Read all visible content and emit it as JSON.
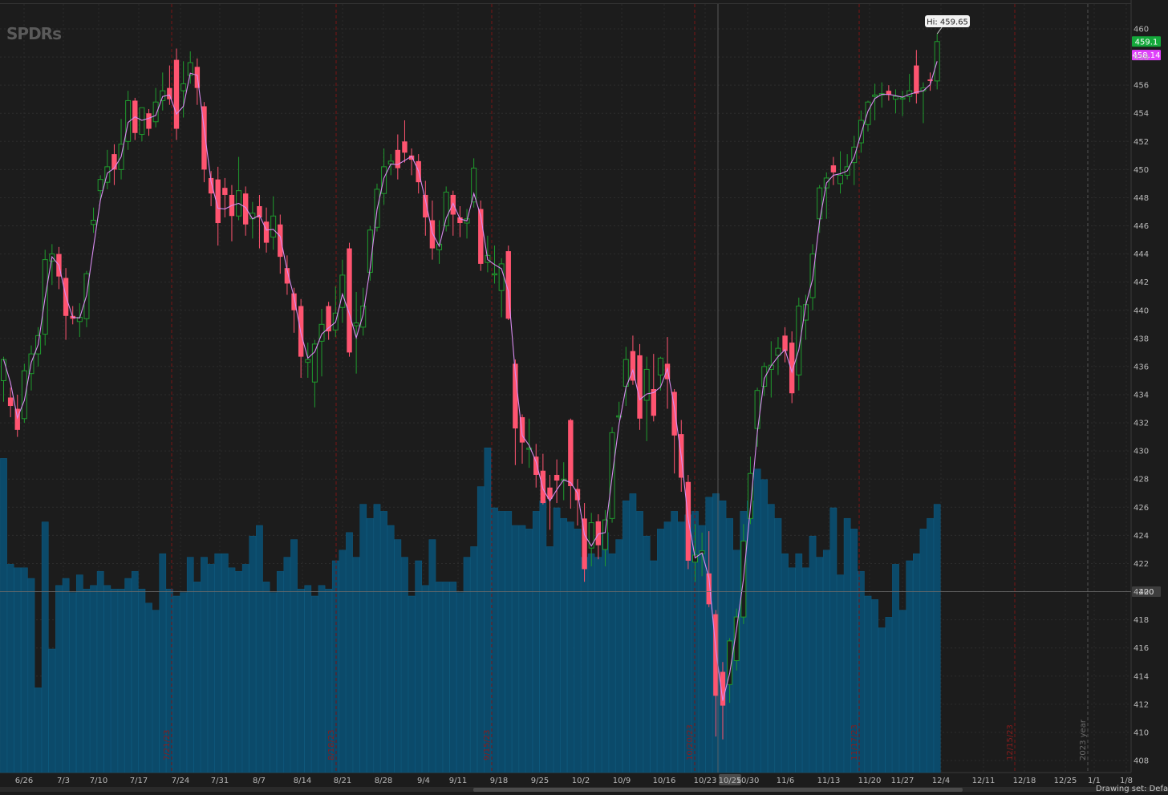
{
  "logo_text": "SPDRs",
  "hi_label": "Hi: 459.65",
  "price_tags": {
    "green": {
      "text": "459.1",
      "value": 459.1,
      "color": "#14a83b"
    },
    "magenta": {
      "text": "458.14",
      "value": 458.14,
      "color": "#e040fb"
    },
    "gray": {
      "text": "420",
      "value": 420,
      "color": "#3d3d3d"
    }
  },
  "drawing_set_label": "Drawing set: Default",
  "chart_data": {
    "type": "candlestick",
    "ylim": [
      407,
      462
    ],
    "y_ticks": [
      408,
      410,
      412,
      414,
      416,
      418,
      420,
      422,
      424,
      426,
      428,
      430,
      432,
      434,
      436,
      438,
      440,
      442,
      444,
      446,
      448,
      450,
      452,
      454,
      456,
      458,
      460
    ],
    "x_tick_labels": [
      "6/26",
      "7/3",
      "7/10",
      "7/17",
      "7/24",
      "7/31",
      "8/7",
      "8/14",
      "8/21",
      "8/28",
      "9/4",
      "9/11",
      "9/18",
      "9/25",
      "10/2",
      "10/9",
      "10/16",
      "10/23",
      "10/25",
      "10/30",
      "11/6",
      "11/13",
      "11/20",
      "11/27",
      "12/4",
      "12/11",
      "12/18",
      "12/25",
      "1/1",
      "1/8"
    ],
    "vertical_markers": [
      {
        "label": "7/21/23",
        "color": "#8a1c1c"
      },
      {
        "label": "8/18/23",
        "color": "#8a1c1c"
      },
      {
        "label": "9/15/23",
        "color": "#8a1c1c"
      },
      {
        "label": "10/20/23",
        "color": "#8a1c1c"
      },
      {
        "label": "11/17/23",
        "color": "#8a1c1c"
      },
      {
        "label": "12/15/23",
        "color": "#8a1c1c"
      },
      {
        "label": "2023 year",
        "color": "#6a6a6a"
      }
    ],
    "candles": [
      {
        "o": 435,
        "h": 436.7,
        "l": 433.5,
        "c": 436.5
      },
      {
        "o": 433.8,
        "h": 434.5,
        "l": 432.4,
        "c": 433.2
      },
      {
        "o": 433,
        "h": 434,
        "l": 431,
        "c": 431.5
      },
      {
        "o": 432.3,
        "h": 436.2,
        "l": 432,
        "c": 435.7
      },
      {
        "o": 435.5,
        "h": 437.5,
        "l": 434.3,
        "c": 436.9
      },
      {
        "o": 436.9,
        "h": 438.8,
        "l": 436,
        "c": 438.2
      },
      {
        "o": 438.3,
        "h": 444.3,
        "l": 437.5,
        "c": 443.6
      },
      {
        "o": 443.5,
        "h": 444.7,
        "l": 441.8,
        "c": 444
      },
      {
        "o": 444,
        "h": 444.5,
        "l": 441.5,
        "c": 442.4
      },
      {
        "o": 442.3,
        "h": 443,
        "l": 437.9,
        "c": 439.6
      },
      {
        "o": 439.6,
        "h": 440.3,
        "l": 439,
        "c": 439.4
      },
      {
        "o": 439.2,
        "h": 440.5,
        "l": 438.1,
        "c": 439.5
      },
      {
        "o": 439.4,
        "h": 442.8,
        "l": 438.8,
        "c": 442.6
      },
      {
        "o": 446.1,
        "h": 447.3,
        "l": 445.5,
        "c": 446.4
      },
      {
        "o": 448.5,
        "h": 449.6,
        "l": 447.8,
        "c": 449.3
      },
      {
        "o": 449.1,
        "h": 451.4,
        "l": 448.6,
        "c": 450.2
      },
      {
        "o": 451.1,
        "h": 451.8,
        "l": 448.9,
        "c": 450
      },
      {
        "o": 450,
        "h": 453.6,
        "l": 449.3,
        "c": 451.8
      },
      {
        "o": 452,
        "h": 455.6,
        "l": 451.4,
        "c": 454.9
      },
      {
        "o": 454.9,
        "h": 455.1,
        "l": 452.1,
        "c": 452.6
      },
      {
        "o": 452.5,
        "h": 454.4,
        "l": 452,
        "c": 454.4
      },
      {
        "o": 454,
        "h": 454.3,
        "l": 452.4,
        "c": 452.9
      },
      {
        "o": 453.4,
        "h": 455.8,
        "l": 453,
        "c": 454.8
      },
      {
        "o": 454.9,
        "h": 456.9,
        "l": 454.2,
        "c": 455.6
      },
      {
        "o": 455.8,
        "h": 457.4,
        "l": 454.6,
        "c": 455
      },
      {
        "o": 457.8,
        "h": 458.6,
        "l": 452.1,
        "c": 452.9
      },
      {
        "o": 455.6,
        "h": 457.7,
        "l": 453.7,
        "c": 456.1
      },
      {
        "o": 456.7,
        "h": 458.4,
        "l": 456.1,
        "c": 457.6
      },
      {
        "o": 457.3,
        "h": 457.9,
        "l": 454.6,
        "c": 455.8
      },
      {
        "o": 454.5,
        "h": 454.8,
        "l": 449.1,
        "c": 450
      },
      {
        "o": 449.4,
        "h": 449.9,
        "l": 447.4,
        "c": 448.3
      },
      {
        "o": 449.3,
        "h": 450.2,
        "l": 444.6,
        "c": 446.2
      },
      {
        "o": 448.7,
        "h": 449.4,
        "l": 446.6,
        "c": 448.2
      },
      {
        "o": 448.2,
        "h": 448.9,
        "l": 444.9,
        "c": 446.7
      },
      {
        "o": 446.7,
        "h": 450.9,
        "l": 446.4,
        "c": 448.5
      },
      {
        "o": 448.3,
        "h": 448.8,
        "l": 445.3,
        "c": 446.1
      },
      {
        "o": 446.5,
        "h": 447.7,
        "l": 445.1,
        "c": 446.9
      },
      {
        "o": 447.4,
        "h": 448.2,
        "l": 444.4,
        "c": 446.6
      },
      {
        "o": 446.3,
        "h": 447.3,
        "l": 444.1,
        "c": 444.8
      },
      {
        "o": 445.2,
        "h": 448.1,
        "l": 444.3,
        "c": 446.7
      },
      {
        "o": 446.1,
        "h": 446.8,
        "l": 442.6,
        "c": 443.8
      },
      {
        "o": 443,
        "h": 443.9,
        "l": 441.1,
        "c": 441.9
      },
      {
        "o": 441.2,
        "h": 441.6,
        "l": 438.4,
        "c": 440
      },
      {
        "o": 440.3,
        "h": 440.8,
        "l": 435.2,
        "c": 436.7
      },
      {
        "o": 436.3,
        "h": 437.7,
        "l": 435.2,
        "c": 436.5
      },
      {
        "o": 434.9,
        "h": 437.9,
        "l": 433.1,
        "c": 437.6
      },
      {
        "o": 437.8,
        "h": 440.1,
        "l": 435.3,
        "c": 439
      },
      {
        "o": 440.3,
        "h": 440.6,
        "l": 437.9,
        "c": 438.5
      },
      {
        "o": 438.6,
        "h": 441.7,
        "l": 438.1,
        "c": 439.8
      },
      {
        "o": 440.2,
        "h": 443.6,
        "l": 439.1,
        "c": 442.5
      },
      {
        "o": 444.4,
        "h": 444.8,
        "l": 436.7,
        "c": 437
      },
      {
        "o": 438.9,
        "h": 441.3,
        "l": 435.5,
        "c": 439.1
      },
      {
        "o": 438.8,
        "h": 441.6,
        "l": 438.2,
        "c": 440.3
      },
      {
        "o": 442.7,
        "h": 446,
        "l": 442.1,
        "c": 445.7
      },
      {
        "o": 445.9,
        "h": 449,
        "l": 445.6,
        "c": 448.6
      },
      {
        "o": 448.3,
        "h": 451.5,
        "l": 447.5,
        "c": 450.2
      },
      {
        "o": 450.4,
        "h": 451.1,
        "l": 449.6,
        "c": 450.6
      },
      {
        "o": 451.4,
        "h": 452.5,
        "l": 449.3,
        "c": 450.1
      },
      {
        "o": 452,
        "h": 453.5,
        "l": 450.5,
        "c": 451.2
      },
      {
        "o": 451,
        "h": 451.5,
        "l": 449.6,
        "c": 450.7
      },
      {
        "o": 450.6,
        "h": 451.1,
        "l": 448.3,
        "c": 449.1
      },
      {
        "o": 448.2,
        "h": 449.2,
        "l": 445.3,
        "c": 446.6
      },
      {
        "o": 446.4,
        "h": 447.8,
        "l": 443.6,
        "c": 444.4
      },
      {
        "o": 444.3,
        "h": 446.4,
        "l": 443.3,
        "c": 444.7
      },
      {
        "o": 446,
        "h": 448.8,
        "l": 445.6,
        "c": 448.4
      },
      {
        "o": 448.2,
        "h": 448.5,
        "l": 445.3,
        "c": 446.8
      },
      {
        "o": 446.6,
        "h": 447.4,
        "l": 445.2,
        "c": 446.2
      },
      {
        "o": 446.2,
        "h": 447.2,
        "l": 445.1,
        "c": 446.5
      },
      {
        "o": 447.7,
        "h": 450.8,
        "l": 447.3,
        "c": 450.1
      },
      {
        "o": 447.2,
        "h": 447.8,
        "l": 442.8,
        "c": 443.3
      },
      {
        "o": 443.4,
        "h": 445.3,
        "l": 442.7,
        "c": 443.9
      },
      {
        "o": 442.6,
        "h": 444.6,
        "l": 441.9,
        "c": 442.6
      },
      {
        "o": 441.4,
        "h": 443.7,
        "l": 439.5,
        "c": 443.3
      },
      {
        "o": 444.2,
        "h": 444.6,
        "l": 439.3,
        "c": 439.4
      },
      {
        "o": 436.2,
        "h": 436.5,
        "l": 429,
        "c": 431.6
      },
      {
        "o": 432.4,
        "h": 432.6,
        "l": 429.1,
        "c": 430.6
      },
      {
        "o": 430.2,
        "h": 432.3,
        "l": 428.8,
        "c": 430.2
      },
      {
        "o": 429.6,
        "h": 430.5,
        "l": 427.4,
        "c": 428.3
      },
      {
        "o": 428.6,
        "h": 429.8,
        "l": 426.2,
        "c": 426.3
      },
      {
        "o": 427.4,
        "h": 428.3,
        "l": 424.4,
        "c": 426.6
      },
      {
        "o": 428.3,
        "h": 429.4,
        "l": 426.3,
        "c": 427.9
      },
      {
        "o": 427.9,
        "h": 429.2,
        "l": 426.5,
        "c": 428
      },
      {
        "o": 432.2,
        "h": 432.3,
        "l": 425.9,
        "c": 427.5
      },
      {
        "o": 427.3,
        "h": 428,
        "l": 424.7,
        "c": 426.5
      },
      {
        "o": 425.2,
        "h": 426.3,
        "l": 420.7,
        "c": 421.6
      },
      {
        "o": 423.1,
        "h": 425.6,
        "l": 421.8,
        "c": 424.9
      },
      {
        "o": 425,
        "h": 425.5,
        "l": 422.3,
        "c": 423.3
      },
      {
        "o": 423,
        "h": 425.8,
        "l": 421.8,
        "c": 425.1
      },
      {
        "o": 425.2,
        "h": 431.7,
        "l": 424.9,
        "c": 431.3
      },
      {
        "o": 432.5,
        "h": 433.5,
        "l": 432.2,
        "c": 432.5
      },
      {
        "o": 434.6,
        "h": 437.4,
        "l": 433.2,
        "c": 436.5
      },
      {
        "o": 437.1,
        "h": 438.2,
        "l": 434.7,
        "c": 435
      },
      {
        "o": 436.8,
        "h": 437.6,
        "l": 431.5,
        "c": 432.3
      },
      {
        "o": 433.6,
        "h": 436.7,
        "l": 430.7,
        "c": 435.8
      },
      {
        "o": 434.4,
        "h": 436.9,
        "l": 432.1,
        "c": 432.5
      },
      {
        "o": 435.4,
        "h": 436.7,
        "l": 434.3,
        "c": 436.6
      },
      {
        "o": 436.2,
        "h": 438.1,
        "l": 433,
        "c": 435.1
      },
      {
        "o": 434.2,
        "h": 434.4,
        "l": 428.4,
        "c": 431.1
      },
      {
        "o": 431.2,
        "h": 432.2,
        "l": 427.1,
        "c": 428.1
      },
      {
        "o": 427.8,
        "h": 428.3,
        "l": 421.6,
        "c": 422.2
      },
      {
        "o": 422.1,
        "h": 424.8,
        "l": 420.7,
        "c": 422.6
      },
      {
        "o": 422.7,
        "h": 424.2,
        "l": 421.1,
        "c": 422.9
      },
      {
        "o": 421.3,
        "h": 424.3,
        "l": 418.9,
        "c": 419.1
      },
      {
        "o": 418.4,
        "h": 418.7,
        "l": 409.7,
        "c": 412.6
      },
      {
        "o": 414.3,
        "h": 415,
        "l": 409.5,
        "c": 411.9
      },
      {
        "o": 413.4,
        "h": 416.7,
        "l": 412.1,
        "c": 416.5
      },
      {
        "o": 415.1,
        "h": 418.8,
        "l": 414.4,
        "c": 418.2
      },
      {
        "o": 418.2,
        "h": 424.8,
        "l": 417.7,
        "c": 423.6
      },
      {
        "o": 425.2,
        "h": 429.6,
        "l": 424.8,
        "c": 428.4
      },
      {
        "o": 431.6,
        "h": 434.5,
        "l": 430.3,
        "c": 434.3
      },
      {
        "o": 434.6,
        "h": 436.3,
        "l": 433.9,
        "c": 436
      },
      {
        "o": 435.8,
        "h": 437.8,
        "l": 433.8,
        "c": 436.1
      },
      {
        "o": 436.8,
        "h": 438.1,
        "l": 435.4,
        "c": 437.3
      },
      {
        "o": 438.2,
        "h": 438.8,
        "l": 436.3,
        "c": 437.1
      },
      {
        "o": 437.7,
        "h": 438.5,
        "l": 433.4,
        "c": 434.1
      },
      {
        "o": 435.4,
        "h": 440.9,
        "l": 434.3,
        "c": 440.3
      },
      {
        "o": 439.3,
        "h": 441.1,
        "l": 437.9,
        "c": 440.4
      },
      {
        "o": 440.9,
        "h": 444.7,
        "l": 440,
        "c": 444
      },
      {
        "o": 446.5,
        "h": 448.9,
        "l": 445.5,
        "c": 448.7
      },
      {
        "o": 448.7,
        "h": 449.8,
        "l": 446.5,
        "c": 449.4
      },
      {
        "o": 450.3,
        "h": 450.9,
        "l": 448.9,
        "c": 449.8
      },
      {
        "o": 449,
        "h": 451.3,
        "l": 448.3,
        "c": 449.6
      },
      {
        "o": 449.6,
        "h": 451.1,
        "l": 449.3,
        "c": 450.2
      },
      {
        "o": 450.5,
        "h": 452.4,
        "l": 448.9,
        "c": 451.6
      },
      {
        "o": 451.9,
        "h": 454.2,
        "l": 451.2,
        "c": 453.5
      },
      {
        "o": 453.2,
        "h": 454.9,
        "l": 452.7,
        "c": 454.8
      },
      {
        "o": 455.2,
        "h": 456.1,
        "l": 453.5,
        "c": 455.3
      },
      {
        "o": 455.3,
        "h": 456.2,
        "l": 454.4,
        "c": 455.4
      },
      {
        "o": 455.6,
        "h": 456,
        "l": 454.9,
        "c": 455.3
      },
      {
        "o": 455,
        "h": 455.7,
        "l": 454,
        "c": 455.2
      },
      {
        "o": 455.1,
        "h": 455.6,
        "l": 453.8,
        "c": 455.1
      },
      {
        "o": 455.2,
        "h": 456.8,
        "l": 454.8,
        "c": 455.6
      },
      {
        "o": 457.4,
        "h": 458.5,
        "l": 454.7,
        "c": 455.4
      },
      {
        "o": 455.6,
        "h": 456.2,
        "l": 453.3,
        "c": 455.8
      },
      {
        "o": 456.4,
        "h": 456.9,
        "l": 455.6,
        "c": 456.3
      },
      {
        "o": 456.3,
        "h": 459.65,
        "l": 455.7,
        "c": 459.1
      }
    ],
    "volume_relative": [
      0.89,
      0.59,
      0.58,
      0.58,
      0.55,
      0.24,
      0.71,
      0.35,
      0.53,
      0.55,
      0.51,
      0.56,
      0.52,
      0.53,
      0.57,
      0.53,
      0.52,
      0.52,
      0.55,
      0.57,
      0.52,
      0.48,
      0.46,
      0.62,
      0.52,
      0.5,
      0.51,
      0.61,
      0.54,
      0.61,
      0.59,
      0.62,
      0.62,
      0.58,
      0.57,
      0.59,
      0.67,
      0.7,
      0.54,
      0.51,
      0.57,
      0.61,
      0.66,
      0.52,
      0.53,
      0.5,
      0.53,
      0.52,
      0.6,
      0.63,
      0.68,
      0.61,
      0.76,
      0.72,
      0.76,
      0.74,
      0.7,
      0.66,
      0.61,
      0.5,
      0.6,
      0.53,
      0.66,
      0.54,
      0.54,
      0.54,
      0.51,
      0.61,
      0.64,
      0.81,
      0.92,
      0.75,
      0.74,
      0.74,
      0.7,
      0.7,
      0.69,
      0.74,
      0.77,
      0.64,
      0.75,
      0.72,
      0.71,
      0.69,
      0.61,
      0.62,
      0.61,
      0.68,
      0.62,
      0.66,
      0.77,
      0.79,
      0.74,
      0.67,
      0.6,
      0.69,
      0.71,
      0.74,
      0.71,
      0.73,
      0.74,
      0.7,
      0.78,
      0.79,
      0.77,
      0.72,
      0.63,
      0.74,
      0.77,
      0.86,
      0.83,
      0.76,
      0.72,
      0.62,
      0.58,
      0.62,
      0.58,
      0.67,
      0.61,
      0.63,
      0.75,
      0.56,
      0.72,
      0.69,
      0.57,
      0.5,
      0.49,
      0.41,
      0.44,
      0.59,
      0.46,
      0.6,
      0.62,
      0.69,
      0.72,
      0.76
    ]
  }
}
